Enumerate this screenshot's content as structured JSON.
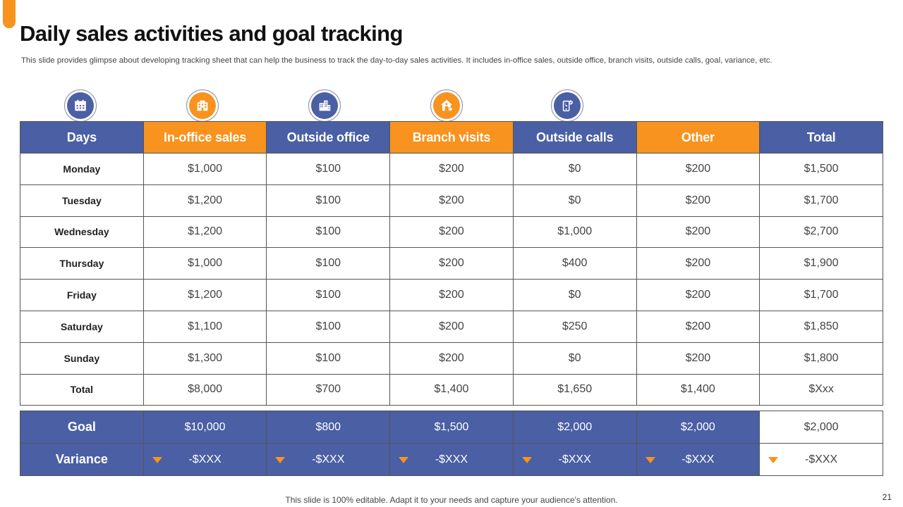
{
  "slide": {
    "title": "Daily sales activities and goal tracking",
    "subtitle": "This slide provides glimpse about developing tracking sheet that can help the business to track the day-to-day sales activities. It includes in-office sales, outside office, branch visits, outside calls, goal, variance, etc.",
    "footer": "This slide is 100% editable. Adapt it to your needs and capture your audience's attention.",
    "page_number": "21",
    "colors": {
      "blue": "#4A5FA4",
      "orange": "#F7931E"
    }
  },
  "icons": [
    {
      "name": "calendar-icon",
      "color": "blue"
    },
    {
      "name": "office-building-icon",
      "color": "orange"
    },
    {
      "name": "city-buildings-icon",
      "color": "blue"
    },
    {
      "name": "branch-house-icon",
      "color": "orange"
    },
    {
      "name": "phone-call-icon",
      "color": "blue"
    }
  ],
  "table": {
    "headers": [
      "Days",
      "In-office sales",
      "Outside office",
      "Branch visits",
      "Outside calls",
      "Other",
      "Total"
    ],
    "rows": [
      {
        "day": "Monday",
        "values": [
          "$1,000",
          "$100",
          "$200",
          "$0",
          "$200",
          "$1,500"
        ]
      },
      {
        "day": "Tuesday",
        "values": [
          "$1,200",
          "$100",
          "$200",
          "$0",
          "$200",
          "$1,700"
        ]
      },
      {
        "day": "Wednesday",
        "values": [
          "$1,200",
          "$100",
          "$200",
          "$1,000",
          "$200",
          "$2,700"
        ]
      },
      {
        "day": "Thursday",
        "values": [
          "$1,000",
          "$100",
          "$200",
          "$400",
          "$200",
          "$1,900"
        ]
      },
      {
        "day": "Friday",
        "values": [
          "$1,200",
          "$100",
          "$200",
          "$0",
          "$200",
          "$1,700"
        ]
      },
      {
        "day": "Saturday",
        "values": [
          "$1,100",
          "$100",
          "$200",
          "$250",
          "$200",
          "$1,850"
        ]
      },
      {
        "day": "Sunday",
        "values": [
          "$1,300",
          "$100",
          "$200",
          "$0",
          "$200",
          "$1,800"
        ]
      },
      {
        "day": "Total",
        "values": [
          "$8,000",
          "$700",
          "$1,400",
          "$1,650",
          "$1,400",
          "$Xxx"
        ]
      }
    ]
  },
  "goal": {
    "label": "Goal",
    "values": [
      "$10,000",
      "$800",
      "$1,500",
      "$2,000",
      "$2,000",
      "$2,000"
    ]
  },
  "variance": {
    "label": "Variance",
    "values": [
      "-$XXX",
      "-$XXX",
      "-$XXX",
      "-$XXX",
      "-$XXX",
      "-$XXX"
    ]
  }
}
